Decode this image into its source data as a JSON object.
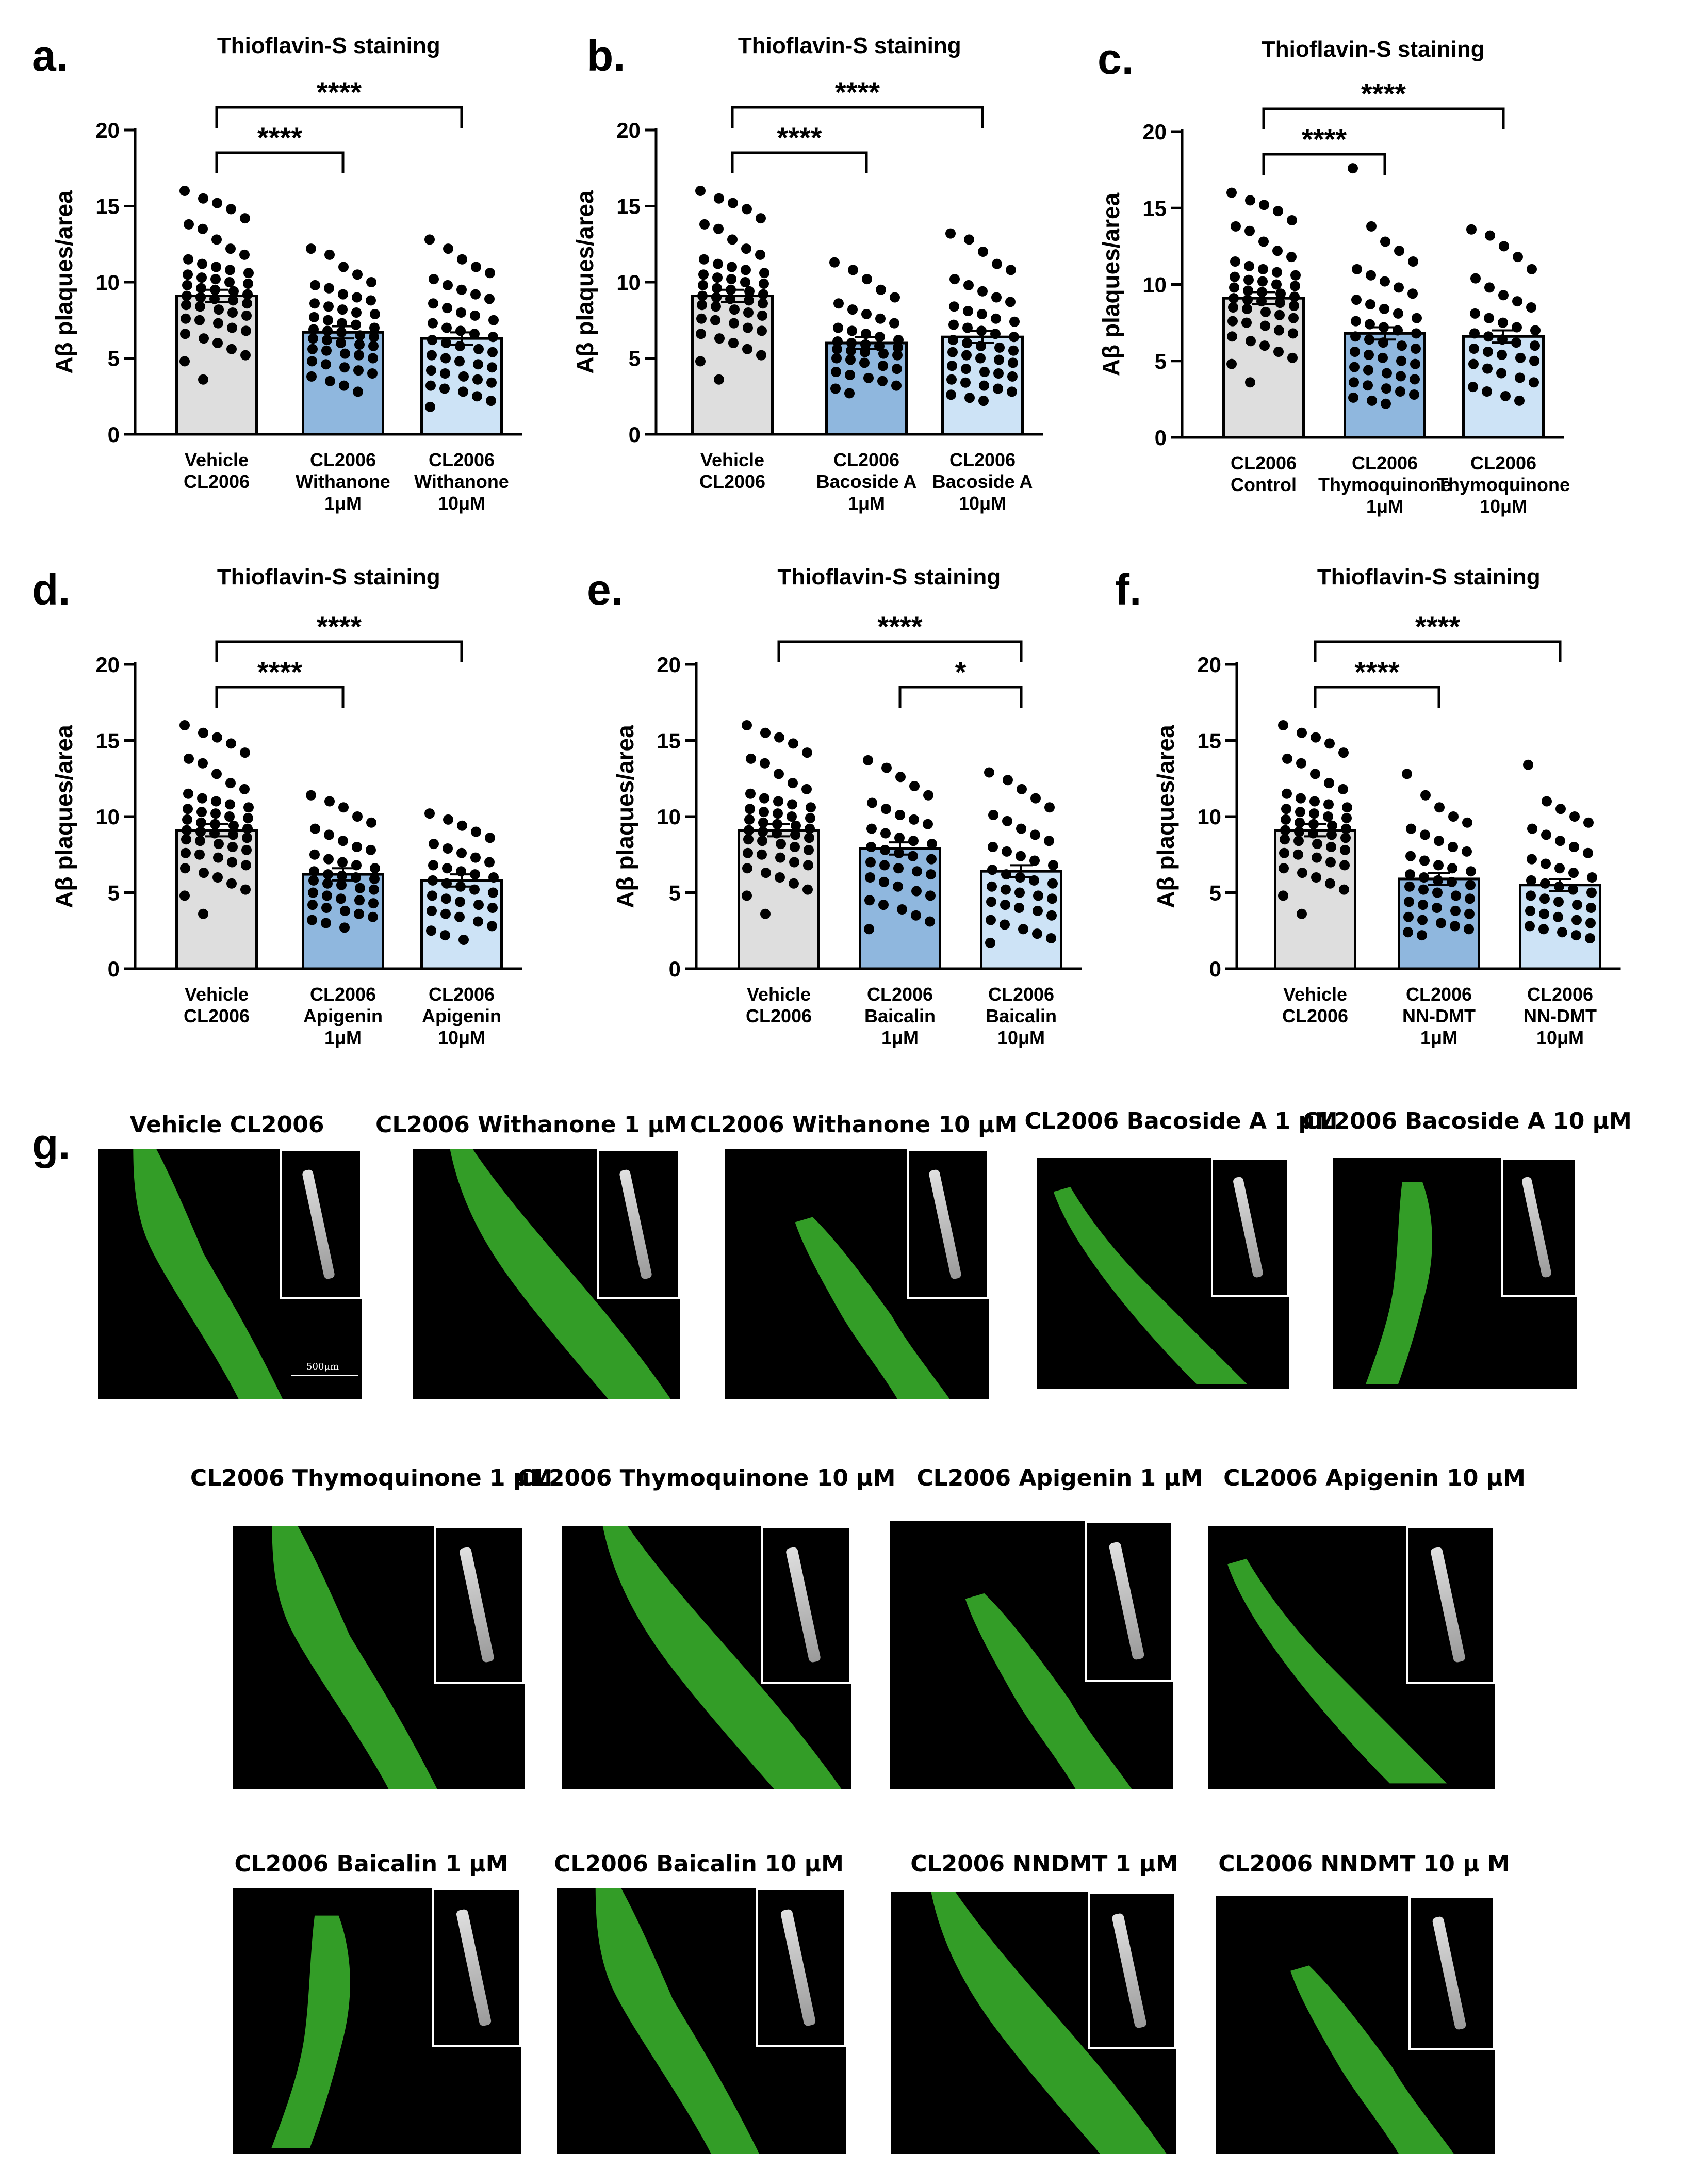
{
  "colors": {
    "vehicle_bar": "#dedede",
    "low_dose_bar": "#8fb7de",
    "high_dose_bar": "#cde3f6",
    "dot": "#000000",
    "worm_green": "#3cb82e"
  },
  "panel_letters": [
    "a.",
    "b.",
    "c.",
    "d.",
    "e.",
    "f.",
    "g."
  ],
  "chart_data": [
    {
      "type": "bar",
      "panel": "a.",
      "title": "Thioflavin-S staining",
      "ylabel": "Aβ plaques/area",
      "ylim": [
        0,
        20
      ],
      "yticks": [
        0,
        5,
        10,
        15,
        20
      ],
      "categories": [
        [
          "Vehicle",
          "CL2006"
        ],
        [
          "CL2006",
          "Withanone",
          "1μM"
        ],
        [
          "CL2006",
          "Withanone",
          "10μM"
        ]
      ],
      "values": [
        9.1,
        6.7,
        6.3
      ],
      "points": [
        [
          16.0,
          15.5,
          15.2,
          14.8,
          14.2,
          13.8,
          13.5,
          12.8,
          12.2,
          11.8,
          11.5,
          11.2,
          11.0,
          10.8,
          10.6,
          10.5,
          10.3,
          10.2,
          10.0,
          9.9,
          9.8,
          9.6,
          9.5,
          9.4,
          9.2,
          9.1,
          9.0,
          8.9,
          8.8,
          8.6,
          8.5,
          8.4,
          8.2,
          8.0,
          7.8,
          7.6,
          7.5,
          7.3,
          7.0,
          6.8,
          6.6,
          6.3,
          6.0,
          5.6,
          5.2,
          4.8,
          3.6
        ],
        [
          12.2,
          11.8,
          11.0,
          10.5,
          10.0,
          9.8,
          9.6,
          9.2,
          9.0,
          8.8,
          8.6,
          8.4,
          8.2,
          8.0,
          7.9,
          7.7,
          7.5,
          7.3,
          7.2,
          7.0,
          6.9,
          6.8,
          6.7,
          6.5,
          6.4,
          6.3,
          6.2,
          6.0,
          5.9,
          5.8,
          5.6,
          5.5,
          5.3,
          5.2,
          5.0,
          4.8,
          4.6,
          4.4,
          4.2,
          4.0,
          3.8,
          3.5,
          3.2,
          2.8
        ],
        [
          12.8,
          12.2,
          11.5,
          11.0,
          10.6,
          10.2,
          9.8,
          9.5,
          9.2,
          8.9,
          8.6,
          8.3,
          8.0,
          7.8,
          7.5,
          7.3,
          7.0,
          6.8,
          6.6,
          6.4,
          6.2,
          6.0,
          5.8,
          5.6,
          5.4,
          5.2,
          5.0,
          4.8,
          4.6,
          4.4,
          4.2,
          4.0,
          3.8,
          3.6,
          3.4,
          3.2,
          3.0,
          2.8,
          2.5,
          2.2,
          1.8
        ]
      ],
      "comparisons": [
        {
          "from": 0,
          "to": 1,
          "label": "****"
        },
        {
          "from": 0,
          "to": 2,
          "label": "****"
        }
      ]
    },
    {
      "type": "bar",
      "panel": "b.",
      "title": "Thioflavin-S staining",
      "ylabel": "Aβ plaques/area",
      "ylim": [
        0,
        20
      ],
      "yticks": [
        0,
        5,
        10,
        15,
        20
      ],
      "categories": [
        [
          "Vehicle",
          "CL2006"
        ],
        [
          "CL2006",
          "Bacoside A",
          "1μM"
        ],
        [
          "CL2006",
          "Bacoside A",
          "10μM"
        ]
      ],
      "values": [
        9.1,
        6.0,
        6.4
      ],
      "points": [
        [
          16.0,
          15.5,
          15.2,
          14.8,
          14.2,
          13.8,
          13.5,
          12.8,
          12.2,
          11.8,
          11.5,
          11.2,
          11.0,
          10.8,
          10.6,
          10.5,
          10.3,
          10.2,
          10.0,
          9.9,
          9.8,
          9.6,
          9.5,
          9.4,
          9.2,
          9.1,
          9.0,
          8.9,
          8.8,
          8.6,
          8.5,
          8.4,
          8.2,
          8.0,
          7.8,
          7.6,
          7.5,
          7.3,
          7.0,
          6.8,
          6.6,
          6.3,
          6.0,
          5.6,
          5.2,
          4.8,
          3.6
        ],
        [
          11.3,
          10.8,
          10.2,
          9.5,
          9.0,
          8.6,
          8.2,
          7.9,
          7.6,
          7.3,
          7.0,
          6.8,
          6.6,
          6.4,
          6.2,
          6.1,
          6.0,
          5.9,
          5.8,
          5.7,
          5.6,
          5.5,
          5.4,
          5.3,
          5.2,
          5.0,
          4.9,
          4.7,
          4.5,
          4.3,
          4.1,
          3.9,
          3.7,
          3.5,
          3.2,
          3.0,
          2.7
        ],
        [
          13.2,
          12.8,
          12.0,
          11.2,
          10.8,
          10.2,
          9.8,
          9.4,
          9.0,
          8.7,
          8.4,
          8.1,
          7.9,
          7.6,
          7.4,
          7.2,
          7.0,
          6.8,
          6.6,
          6.4,
          6.2,
          6.0,
          5.8,
          5.7,
          5.5,
          5.4,
          5.2,
          5.0,
          4.9,
          4.7,
          4.5,
          4.3,
          4.1,
          4.0,
          3.8,
          3.6,
          3.4,
          3.2,
          3.0,
          2.8,
          2.6,
          2.4,
          2.2
        ]
      ],
      "comparisons": [
        {
          "from": 0,
          "to": 1,
          "label": "****"
        },
        {
          "from": 0,
          "to": 2,
          "label": "****"
        }
      ]
    },
    {
      "type": "bar",
      "panel": "c.",
      "title": "Thioflavin-S staining",
      "ylabel": "Aβ plaques/area",
      "ylim": [
        0,
        20
      ],
      "yticks": [
        0,
        5,
        10,
        15,
        20
      ],
      "categories": [
        [
          "CL2006",
          "Control"
        ],
        [
          "CL2006",
          "Thymoquinone",
          "1μM"
        ],
        [
          "CL2006",
          "Thymoquinone",
          "10μM"
        ]
      ],
      "values": [
        9.1,
        6.8,
        6.6
      ],
      "points": [
        [
          16.0,
          15.5,
          15.2,
          14.8,
          14.2,
          13.8,
          13.5,
          12.8,
          12.2,
          11.8,
          11.5,
          11.2,
          11.0,
          10.8,
          10.6,
          10.5,
          10.3,
          10.2,
          10.0,
          9.9,
          9.8,
          9.6,
          9.5,
          9.4,
          9.2,
          9.1,
          9.0,
          8.9,
          8.8,
          8.6,
          8.5,
          8.4,
          8.2,
          8.0,
          7.8,
          7.6,
          7.5,
          7.3,
          7.0,
          6.8,
          6.6,
          6.3,
          6.0,
          5.6,
          5.2,
          4.8,
          3.6
        ],
        [
          17.6,
          13.8,
          12.8,
          12.2,
          11.5,
          11.0,
          10.6,
          10.2,
          9.8,
          9.4,
          9.0,
          8.7,
          8.4,
          8.1,
          7.8,
          7.6,
          7.4,
          7.2,
          7.0,
          6.8,
          6.6,
          6.4,
          6.2,
          6.0,
          5.8,
          5.6,
          5.4,
          5.2,
          5.0,
          4.8,
          4.6,
          4.4,
          4.2,
          4.0,
          3.8,
          3.6,
          3.4,
          3.2,
          3.0,
          2.8,
          2.6,
          2.4,
          2.2
        ],
        [
          13.6,
          13.2,
          12.5,
          11.8,
          11.0,
          10.4,
          9.8,
          9.3,
          8.9,
          8.5,
          8.1,
          7.8,
          7.5,
          7.2,
          7.0,
          6.8,
          6.6,
          6.4,
          6.2,
          6.0,
          5.8,
          5.6,
          5.4,
          5.2,
          5.0,
          4.8,
          4.5,
          4.2,
          3.9,
          3.6,
          3.3,
          3.0,
          2.7,
          2.4
        ]
      ],
      "comparisons": [
        {
          "from": 0,
          "to": 1,
          "label": "****"
        },
        {
          "from": 0,
          "to": 2,
          "label": "****"
        }
      ]
    },
    {
      "type": "bar",
      "panel": "d.",
      "title": "Thioflavin-S staining",
      "ylabel": "Aβ plaques/area",
      "ylim": [
        0,
        20
      ],
      "yticks": [
        0,
        5,
        10,
        15,
        20
      ],
      "categories": [
        [
          "Vehicle",
          "CL2006"
        ],
        [
          "CL2006",
          "Apigenin",
          "1μM"
        ],
        [
          "CL2006",
          "Apigenin",
          "10μM"
        ]
      ],
      "values": [
        9.1,
        6.2,
        5.8
      ],
      "points": [
        [
          16.0,
          15.5,
          15.2,
          14.8,
          14.2,
          13.8,
          13.5,
          12.8,
          12.2,
          11.8,
          11.5,
          11.2,
          11.0,
          10.8,
          10.6,
          10.5,
          10.3,
          10.2,
          10.0,
          9.9,
          9.8,
          9.6,
          9.5,
          9.4,
          9.2,
          9.1,
          9.0,
          8.9,
          8.8,
          8.6,
          8.5,
          8.4,
          8.2,
          8.0,
          7.8,
          7.6,
          7.5,
          7.3,
          7.0,
          6.8,
          6.6,
          6.3,
          6.0,
          5.6,
          5.2,
          4.8,
          3.6
        ],
        [
          11.4,
          11.0,
          10.6,
          10.0,
          9.6,
          9.2,
          8.8,
          8.4,
          8.0,
          7.8,
          7.5,
          7.2,
          7.0,
          6.8,
          6.6,
          6.4,
          6.2,
          6.1,
          6.0,
          5.9,
          5.8,
          5.6,
          5.5,
          5.3,
          5.2,
          5.0,
          4.8,
          4.6,
          4.5,
          4.3,
          4.2,
          4.0,
          3.8,
          3.6,
          3.4,
          3.2,
          3.0,
          2.7
        ],
        [
          10.2,
          9.8,
          9.4,
          9.0,
          8.6,
          8.2,
          7.9,
          7.6,
          7.3,
          7.0,
          6.8,
          6.6,
          6.4,
          6.2,
          6.0,
          5.8,
          5.6,
          5.4,
          5.2,
          5.0,
          4.8,
          4.6,
          4.4,
          4.2,
          4.0,
          3.8,
          3.6,
          3.4,
          3.1,
          2.8,
          2.5,
          2.2,
          1.9
        ]
      ],
      "comparisons": [
        {
          "from": 0,
          "to": 1,
          "label": "****"
        },
        {
          "from": 0,
          "to": 2,
          "label": "****"
        }
      ]
    },
    {
      "type": "bar",
      "panel": "e.",
      "title": "Thioflavin-S staining",
      "ylabel": "Aβ plaques/area",
      "ylim": [
        0,
        20
      ],
      "yticks": [
        0,
        5,
        10,
        15,
        20
      ],
      "categories": [
        [
          "Vehicle",
          "CL2006"
        ],
        [
          "CL2006",
          "Baicalin",
          "1μM"
        ],
        [
          "CL2006",
          "Baicalin",
          "10μM"
        ]
      ],
      "values": [
        9.1,
        7.9,
        6.4
      ],
      "points": [
        [
          16.0,
          15.5,
          15.2,
          14.8,
          14.2,
          13.8,
          13.5,
          12.8,
          12.2,
          11.8,
          11.5,
          11.2,
          11.0,
          10.8,
          10.6,
          10.5,
          10.3,
          10.2,
          10.0,
          9.9,
          9.8,
          9.6,
          9.5,
          9.4,
          9.2,
          9.1,
          9.0,
          8.9,
          8.8,
          8.6,
          8.5,
          8.4,
          8.2,
          8.0,
          7.8,
          7.6,
          7.5,
          7.3,
          7.0,
          6.8,
          6.6,
          6.3,
          6.0,
          5.6,
          5.2,
          4.8,
          3.6
        ],
        [
          13.7,
          13.2,
          12.6,
          12.0,
          11.4,
          10.9,
          10.5,
          10.1,
          9.8,
          9.5,
          9.2,
          8.9,
          8.6,
          8.4,
          8.2,
          8.0,
          7.8,
          7.6,
          7.4,
          7.2,
          7.0,
          6.8,
          6.6,
          6.4,
          6.2,
          6.0,
          5.7,
          5.4,
          5.1,
          4.8,
          4.5,
          4.2,
          3.9,
          3.5,
          3.1,
          2.6
        ],
        [
          12.9,
          12.4,
          11.8,
          11.2,
          10.6,
          10.1,
          9.7,
          9.2,
          8.8,
          8.4,
          8.0,
          7.7,
          7.4,
          7.1,
          6.8,
          6.5,
          6.2,
          6.0,
          5.8,
          5.6,
          5.4,
          5.2,
          5.0,
          4.8,
          4.6,
          4.4,
          4.2,
          4.0,
          3.8,
          3.5,
          3.2,
          2.9,
          2.6,
          2.3,
          2.0,
          1.7
        ]
      ],
      "comparisons": [
        {
          "from": 1,
          "to": 2,
          "label": "*"
        },
        {
          "from": 0,
          "to": 2,
          "label": "****"
        }
      ]
    },
    {
      "type": "bar",
      "panel": "f.",
      "title": "Thioflavin-S staining",
      "ylabel": "Aβ plaques/area",
      "ylim": [
        0,
        20
      ],
      "yticks": [
        0,
        5,
        10,
        15,
        20
      ],
      "categories": [
        [
          "Vehicle",
          "CL2006"
        ],
        [
          "CL2006",
          "NN-DMT",
          "1μM"
        ],
        [
          "CL2006",
          "NN-DMT",
          "10μM"
        ]
      ],
      "values": [
        9.1,
        5.9,
        5.5
      ],
      "points": [
        [
          16.0,
          15.5,
          15.2,
          14.8,
          14.2,
          13.8,
          13.5,
          12.8,
          12.2,
          11.8,
          11.5,
          11.2,
          11.0,
          10.8,
          10.6,
          10.5,
          10.3,
          10.2,
          10.0,
          9.9,
          9.8,
          9.6,
          9.5,
          9.4,
          9.2,
          9.1,
          9.0,
          8.9,
          8.8,
          8.6,
          8.5,
          8.4,
          8.2,
          8.0,
          7.8,
          7.6,
          7.5,
          7.3,
          7.0,
          6.8,
          6.6,
          6.3,
          6.0,
          5.6,
          5.2,
          4.8,
          3.6
        ],
        [
          12.8,
          11.4,
          10.6,
          10.0,
          9.6,
          9.2,
          8.8,
          8.4,
          8.0,
          7.7,
          7.4,
          7.1,
          6.8,
          6.6,
          6.4,
          6.2,
          6.0,
          5.8,
          5.7,
          5.5,
          5.4,
          5.2,
          5.0,
          4.8,
          4.6,
          4.4,
          4.2,
          4.0,
          3.8,
          3.6,
          3.4,
          3.2,
          3.0,
          2.8,
          2.6,
          2.4,
          2.2
        ],
        [
          13.4,
          11.0,
          10.5,
          10.0,
          9.6,
          9.2,
          8.8,
          8.4,
          8.0,
          7.6,
          7.2,
          6.9,
          6.6,
          6.3,
          6.0,
          5.8,
          5.6,
          5.4,
          5.2,
          5.0,
          4.8,
          4.6,
          4.4,
          4.2,
          4.0,
          3.8,
          3.6,
          3.4,
          3.2,
          3.0,
          2.8,
          2.6,
          2.4,
          2.2,
          2.0
        ]
      ],
      "comparisons": [
        {
          "from": 0,
          "to": 1,
          "label": "****"
        },
        {
          "from": 0,
          "to": 2,
          "label": "****"
        }
      ]
    }
  ],
  "micrographs": [
    {
      "label": "Vehicle CL2006",
      "scale_bar": "500μm"
    },
    {
      "label": "CL2006 Withanone 1 μM"
    },
    {
      "label": "CL2006 Withanone 10 μM"
    },
    {
      "label": "CL2006 Bacoside A 1 μM"
    },
    {
      "label": "CL2006 Bacoside A 10 μM"
    },
    {
      "label": "CL2006 Thymoquinone 1 μM"
    },
    {
      "label": "CL2006 Thymoquinone 10 μM"
    },
    {
      "label": "CL2006 Apigenin 1 μM"
    },
    {
      "label": "CL2006 Apigenin 10 μM"
    },
    {
      "label": "CL2006 Baicalin 1 μM"
    },
    {
      "label": "CL2006 Baicalin 10 μM"
    },
    {
      "label": "CL2006 NNDMT 1 μM"
    },
    {
      "label": "CL2006 NNDMT 10 μ M"
    }
  ]
}
